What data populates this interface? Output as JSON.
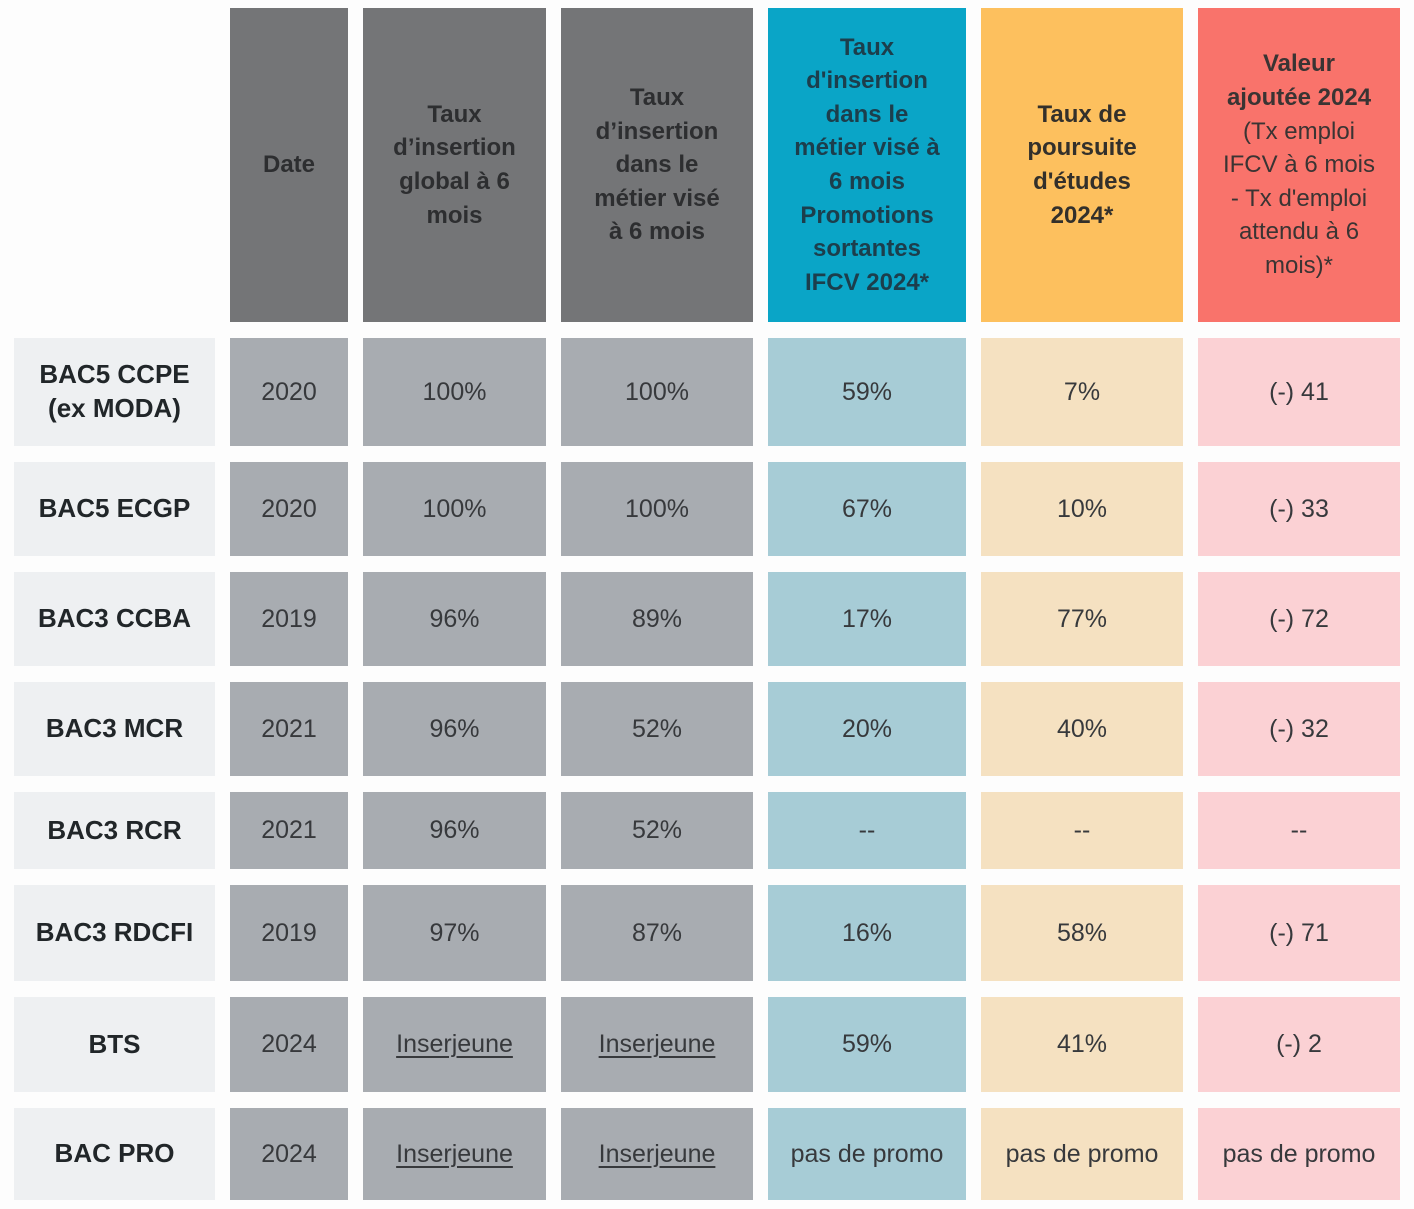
{
  "chart_data": {
    "type": "table",
    "columns": {
      "date": {
        "header": "Date"
      },
      "global": {
        "header": "Taux d’insertion global à 6 mois"
      },
      "metier": {
        "header": "Taux d’insertion dans le métier visé à 6 mois"
      },
      "ifcv": {
        "header": "Taux d'insertion dans le métier visé à 6 mois Promotions sortantes IFCV 2024*"
      },
      "poursuite": {
        "header": "Taux de poursuite d'études 2024*"
      },
      "valeur": {
        "header_bold": "Valeur ajoutée 2024",
        "header_note": "(Tx emploi IFCV à 6 mois - Tx d'emploi attendu à 6 mois)*"
      }
    },
    "rows": [
      {
        "label": "BAC5 CCPE (ex MODA)",
        "date": "2020",
        "global": "100%",
        "metier": "100%",
        "ifcv": "59%",
        "poursuite": "7%",
        "valeur": "(-) 41"
      },
      {
        "label": "BAC5 ECGP",
        "date": "2020",
        "global": "100%",
        "metier": "100%",
        "ifcv": "67%",
        "poursuite": "10%",
        "valeur": "(-) 33"
      },
      {
        "label": "BAC3 CCBA",
        "date": "2019",
        "global": "96%",
        "metier": "89%",
        "ifcv": "17%",
        "poursuite": "77%",
        "valeur": "(-) 72"
      },
      {
        "label": "BAC3 MCR",
        "date": "2021",
        "global": "96%",
        "metier": "52%",
        "ifcv": "20%",
        "poursuite": "40%",
        "valeur": "(-) 32"
      },
      {
        "label": "BAC3 RCR",
        "date": "2021",
        "global": "96%",
        "metier": "52%",
        "ifcv": "--",
        "poursuite": "--",
        "valeur": "--"
      },
      {
        "label": "BAC3 RDCFI",
        "date": "2019",
        "global": "97%",
        "metier": "87%",
        "ifcv": "16%",
        "poursuite": "58%",
        "valeur": "(-) 71"
      },
      {
        "label": "BTS",
        "date": "2024",
        "global": "Inserjeune",
        "metier": "Inserjeune",
        "ifcv": "59%",
        "poursuite": "41%",
        "valeur": "(-) 2"
      },
      {
        "label": "BAC PRO",
        "date": "2024",
        "global": "Inserjeune",
        "metier": "Inserjeune",
        "ifcv": "pas de promo",
        "poursuite": "pas de promo",
        "valeur": "pas de promo"
      }
    ],
    "layout_hints": {
      "grid": "off",
      "legend": "none"
    }
  },
  "colors": {
    "header_gray": "#747577",
    "header_teal": "#0aa5c7",
    "header_orange": "#fdc05e",
    "header_red": "#f9736b",
    "row_label_bg": "#eef0f2",
    "cell_gray": "#a8acb1",
    "cell_teal": "#a7ccd6",
    "cell_orange": "#f5e1c1",
    "cell_pink": "#fbd1d4"
  }
}
